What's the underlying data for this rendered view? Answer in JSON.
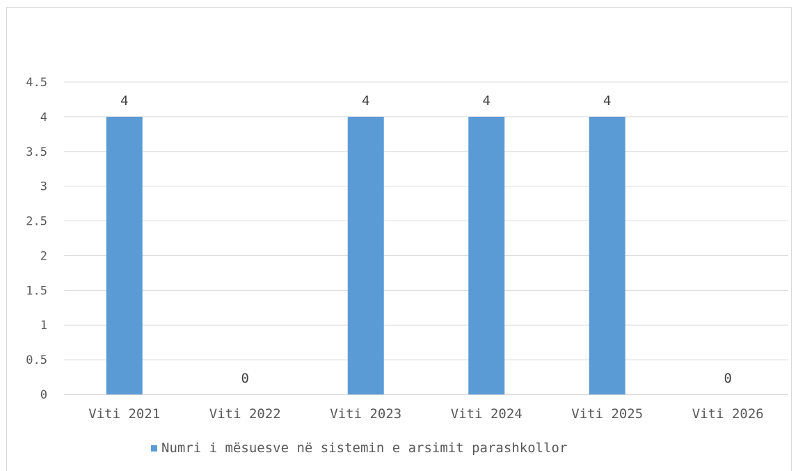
{
  "chart_data": {
    "type": "bar",
    "categories": [
      "Viti 2021",
      "Viti 2022",
      "Viti 2023",
      "Viti 2024",
      "Viti 2025",
      "Viti 2026"
    ],
    "series": [
      {
        "name": "Numri i mësuesve në sistemin e arsimit parashkollor",
        "values": [
          4,
          0,
          4,
          4,
          4,
          0
        ],
        "color": "#5b9bd5"
      }
    ],
    "ylim": [
      0,
      4.5
    ],
    "yticks": [
      "0",
      "0.5",
      "1",
      "1.5",
      "2",
      "2.5",
      "3",
      "3.5",
      "4",
      "4.5"
    ],
    "grid": true,
    "legend": "bottom",
    "data_labels": true
  }
}
